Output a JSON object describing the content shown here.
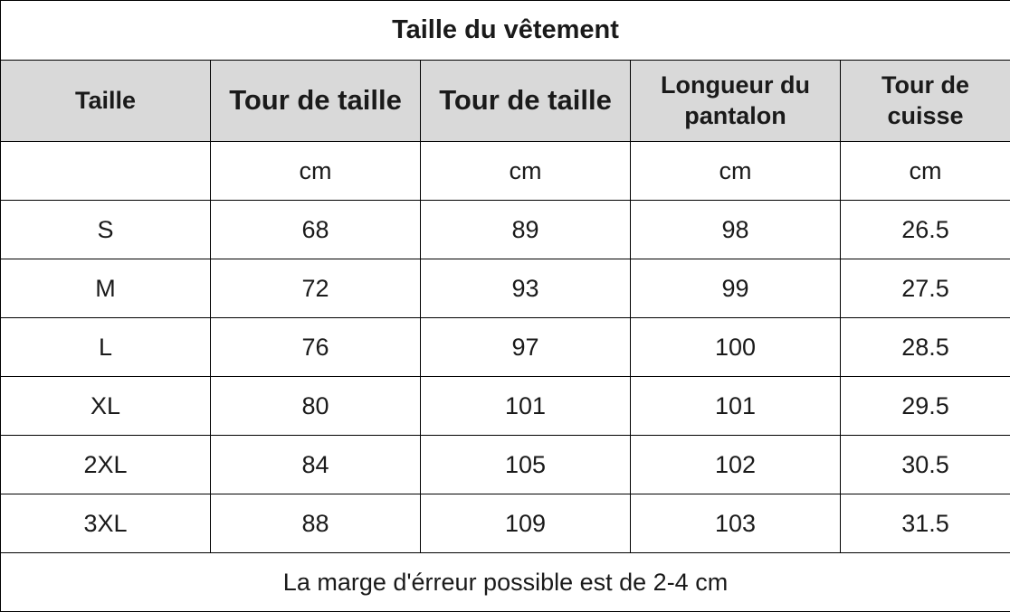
{
  "title": "Taille du vêtement",
  "headers": [
    "Taille",
    "Tour de taille",
    "Tour de taille",
    "Longueur du pantalon",
    "Tour de cuisse"
  ],
  "header_lines": {
    "col4": [
      "Longueur du",
      "pantalon"
    ],
    "col5": [
      "Tour de",
      "cuisse"
    ]
  },
  "units": [
    "",
    "cm",
    "cm",
    "cm",
    "cm"
  ],
  "rows": [
    [
      "S",
      "68",
      "89",
      "98",
      "26.5"
    ],
    [
      "M",
      "72",
      "93",
      "99",
      "27.5"
    ],
    [
      "L",
      "76",
      "97",
      "100",
      "28.5"
    ],
    [
      "XL",
      "80",
      "101",
      "101",
      "29.5"
    ],
    [
      "2XL",
      "84",
      "105",
      "102",
      "30.5"
    ],
    [
      "3XL",
      "88",
      "109",
      "103",
      "31.5"
    ]
  ],
  "footer": "La marge d'érreur possible est de 2-4 cm",
  "colors": {
    "header_bg": "#d9d9d9",
    "border": "#000000",
    "text": "#1a1a1a"
  }
}
